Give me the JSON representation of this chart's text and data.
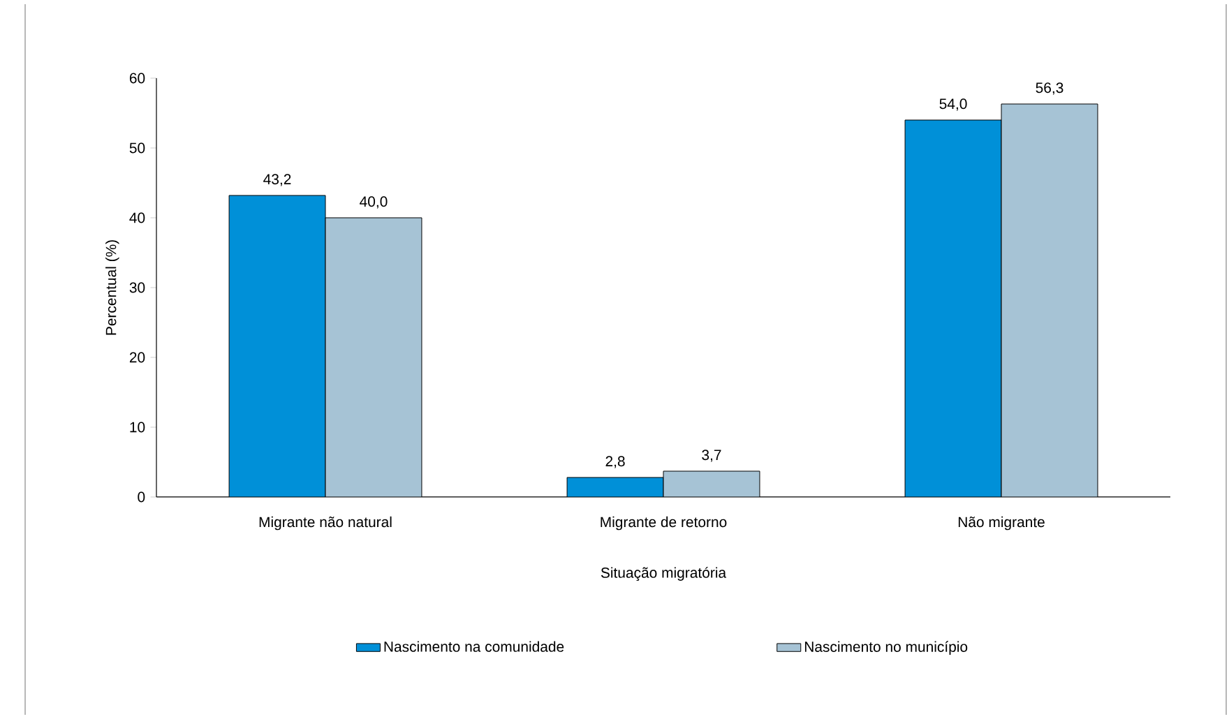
{
  "chart_data": {
    "type": "bar",
    "xlabel": "Situação migratória",
    "ylabel": "Percentual (%)",
    "categories": [
      "Migrante não natural",
      "Migrante de retorno",
      "Não migrante"
    ],
    "series": [
      {
        "name": "Nascimento na comunidade",
        "color": "#0090d8",
        "values": [
          43.2,
          2.8,
          54.0
        ],
        "value_labels": [
          "43,2",
          "2,8",
          "54,0"
        ]
      },
      {
        "name": "Nascimento no município",
        "color": "#a6c3d5",
        "values": [
          40.0,
          3.7,
          56.3
        ],
        "value_labels": [
          "40,0",
          "3,7",
          "56,3"
        ]
      }
    ],
    "ylim": [
      0,
      60
    ],
    "yticks": [
      0,
      10,
      20,
      30,
      40,
      50,
      60
    ],
    "legend": "bottom"
  }
}
